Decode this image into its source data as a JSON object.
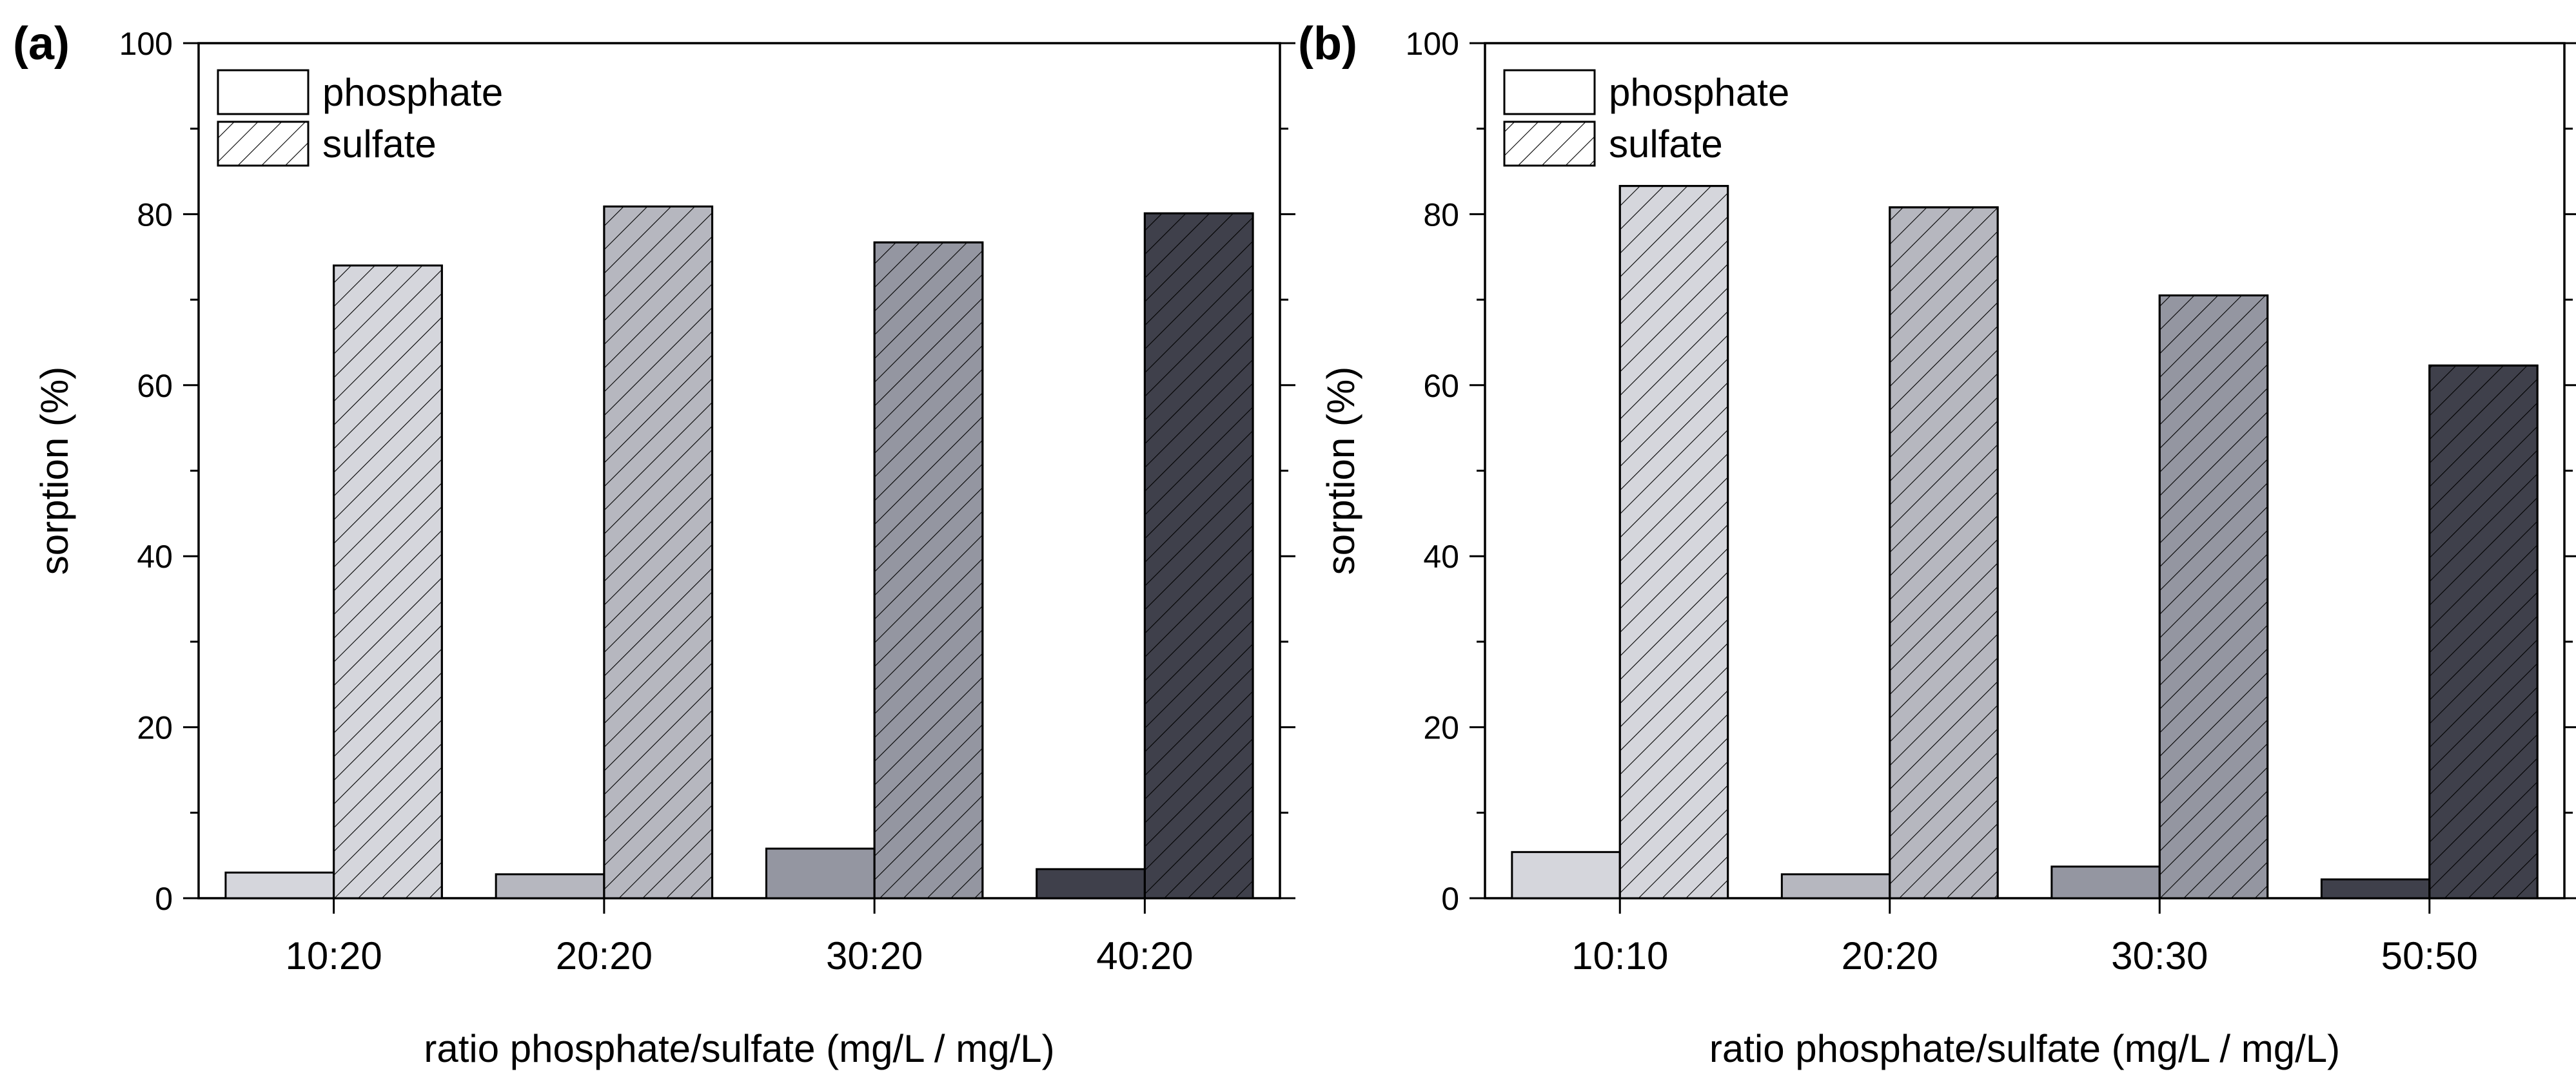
{
  "chart_data": [
    {
      "type": "bar",
      "panel_label": "(a)",
      "categories": [
        "10:20",
        "20:20",
        "30:20",
        "40:20"
      ],
      "series": [
        {
          "name": "phosphate",
          "values": [
            3.0,
            2.8,
            5.8,
            3.4
          ]
        },
        {
          "name": "sulfate",
          "values": [
            74.0,
            80.9,
            76.7,
            80.1
          ]
        }
      ],
      "bar_colors": [
        "#d5d6dc",
        "#b6b7bf",
        "#9496a1",
        "#3f404b"
      ],
      "xlabel": "ratio phosphate/sulfate (mg/L / mg/L)",
      "ylabel": "sorption (%)",
      "ylim": [
        0,
        100
      ],
      "yticks": [
        0,
        20,
        40,
        60,
        80,
        100
      ],
      "legend": {
        "position": "top-left",
        "entries": [
          "phosphate",
          "sulfate"
        ]
      }
    },
    {
      "type": "bar",
      "panel_label": "(b)",
      "categories": [
        "10:10",
        "20:20",
        "30:30",
        "50:50"
      ],
      "series": [
        {
          "name": "phosphate",
          "values": [
            5.4,
            2.8,
            3.7,
            2.2
          ]
        },
        {
          "name": "sulfate",
          "values": [
            83.3,
            80.8,
            70.5,
            62.3
          ]
        }
      ],
      "bar_colors": [
        "#d5d6dc",
        "#b6b7bf",
        "#9496a1",
        "#3f404b"
      ],
      "xlabel": "ratio phosphate/sulfate (mg/L / mg/L)",
      "ylabel": "sorption (%)",
      "ylim": [
        0,
        100
      ],
      "yticks": [
        0,
        20,
        40,
        60,
        80,
        100
      ],
      "legend": {
        "position": "top-left",
        "entries": [
          "phosphate",
          "sulfate"
        ]
      }
    }
  ]
}
